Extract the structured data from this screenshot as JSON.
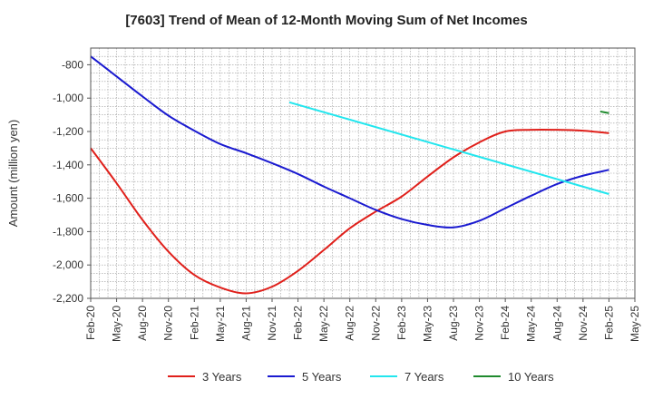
{
  "chart_data": {
    "type": "line",
    "title": "[7603]  Trend of Mean of 12-Month Moving Sum of Net Incomes",
    "ylabel": "Amount (million yen)",
    "xlabel": "",
    "ylim": [
      -2200,
      -700
    ],
    "yticks": [
      -800,
      -1000,
      -1200,
      -1400,
      -1600,
      -1800,
      -2000,
      -2200
    ],
    "ytick_labels": [
      "-800",
      "-1,000",
      "-1,200",
      "-1,400",
      "-1,600",
      "-1,800",
      "-2,000",
      "-2,200"
    ],
    "x_range": [
      "2020-02",
      "2025-05"
    ],
    "xtick_labels": [
      "Feb-20",
      "May-20",
      "Aug-20",
      "Nov-20",
      "Feb-21",
      "May-21",
      "Aug-21",
      "Nov-21",
      "Feb-22",
      "May-22",
      "Aug-22",
      "Nov-22",
      "Feb-23",
      "May-23",
      "Aug-23",
      "Nov-23",
      "Feb-24",
      "May-24",
      "Aug-24",
      "Nov-24",
      "Feb-25",
      "May-25"
    ],
    "grid": true,
    "legend_position": "bottom",
    "series": [
      {
        "name": "3 Years",
        "color": "#e0201b",
        "x": [
          "2020-02",
          "2020-05",
          "2020-08",
          "2020-11",
          "2021-02",
          "2021-05",
          "2021-08",
          "2021-11",
          "2022-02",
          "2022-05",
          "2022-08",
          "2022-11",
          "2023-02",
          "2023-05",
          "2023-08",
          "2023-11",
          "2024-02",
          "2024-05",
          "2024-08",
          "2024-11",
          "2025-02"
        ],
        "values": [
          -1300,
          -1510,
          -1730,
          -1920,
          -2060,
          -2135,
          -2170,
          -2130,
          -2035,
          -1910,
          -1780,
          -1680,
          -1590,
          -1470,
          -1355,
          -1265,
          -1200,
          -1190,
          -1190,
          -1195,
          -1210
        ]
      },
      {
        "name": "5 Years",
        "color": "#1a1ad0",
        "x": [
          "2020-02",
          "2020-05",
          "2020-08",
          "2020-11",
          "2021-02",
          "2021-05",
          "2021-08",
          "2021-11",
          "2022-02",
          "2022-05",
          "2022-08",
          "2022-11",
          "2023-02",
          "2023-05",
          "2023-08",
          "2023-11",
          "2024-02",
          "2024-05",
          "2024-08",
          "2024-11",
          "2025-02"
        ],
        "values": [
          -750,
          -870,
          -990,
          -1105,
          -1195,
          -1275,
          -1330,
          -1390,
          -1455,
          -1530,
          -1600,
          -1670,
          -1725,
          -1760,
          -1775,
          -1735,
          -1660,
          -1585,
          -1515,
          -1465,
          -1430
        ]
      },
      {
        "name": "7 Years",
        "color": "#22e6ee",
        "x": [
          "2022-01",
          "2025-02"
        ],
        "values": [
          -1025,
          -1575
        ]
      },
      {
        "name": "10 Years",
        "color": "#1f8a2e",
        "x": [
          "2025-01",
          "2025-02"
        ],
        "values": [
          -1080,
          -1090
        ]
      }
    ]
  }
}
